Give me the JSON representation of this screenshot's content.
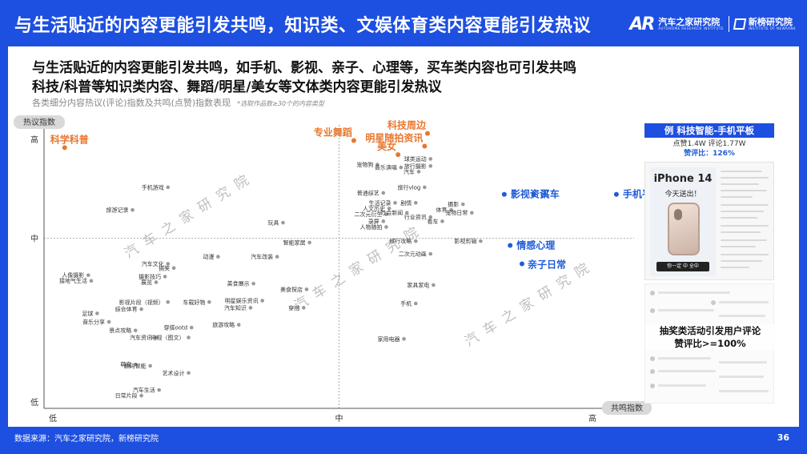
{
  "header": {
    "title": "与生活贴近的内容更能引发共鸣，知识类、文娱体育类内容更能引发热议",
    "logo_primary": "汽车之家研究院",
    "logo_primary_en": "AUTOHOME RESEARCH INSTITUTE",
    "logo_secondary": "新榜研究院",
    "logo_secondary_en": "INSTITUTE OF NEWRANK"
  },
  "headline": {
    "line1": "与生活贴近的内容更能引发共鸣，如手机、影视、亲子、心理等，买车类内容也可引发共鸣",
    "line2": "科技/科普等知识类内容、舞蹈/明星/美女等文体类内容更能引发热议",
    "subtitle": "各类细分内容热议(评论)指数及共鸣(点赞)指数表现",
    "note": "*选取作品数≥30个的内容类型"
  },
  "chart_data": {
    "type": "scatter",
    "xlabel": "共鸣指数",
    "ylabel": "热议指数",
    "x_ticks": [
      "低",
      "中",
      "高"
    ],
    "y_ticks": [
      "高",
      "中",
      "低"
    ],
    "xlim": [
      0,
      10
    ],
    "ylim": [
      0,
      10
    ],
    "divider_x": 5,
    "divider_y": 6,
    "points": [
      {
        "label": "科学科普",
        "x": 0.35,
        "y": 9.2,
        "style": "orange"
      },
      {
        "label": "专业舞蹈",
        "x": 5.25,
        "y": 9.45,
        "style": "orange"
      },
      {
        "label": "科技周边",
        "x": 6.5,
        "y": 9.7,
        "style": "orange"
      },
      {
        "label": "明星随拍资讯",
        "x": 6.45,
        "y": 9.25,
        "style": "orange"
      },
      {
        "label": "美女",
        "x": 6.0,
        "y": 8.95,
        "style": "orange"
      },
      {
        "label": "影视资讯",
        "x": 7.8,
        "y": 7.55,
        "style": "blue"
      },
      {
        "label": "买车",
        "x": 8.3,
        "y": 7.55,
        "style": "blue"
      },
      {
        "label": "手机平板",
        "x": 9.7,
        "y": 7.55,
        "style": "blue"
      },
      {
        "label": "情感心理",
        "x": 7.9,
        "y": 5.75,
        "style": "blue"
      },
      {
        "label": "亲子日常",
        "x": 8.1,
        "y": 5.1,
        "style": "blue"
      },
      {
        "label": "球类运动",
        "x": 6.55,
        "y": 8.8,
        "style": "normal"
      },
      {
        "label": "旅行摄影",
        "x": 6.55,
        "y": 8.55,
        "style": "normal"
      },
      {
        "label": "宠物狗",
        "x": 5.65,
        "y": 8.6,
        "style": "normal"
      },
      {
        "label": "音乐演唱",
        "x": 6.05,
        "y": 8.5,
        "style": "normal"
      },
      {
        "label": "汽车",
        "x": 6.35,
        "y": 8.35,
        "style": "normal"
      },
      {
        "label": "旅行vlog",
        "x": 6.45,
        "y": 7.8,
        "style": "normal"
      },
      {
        "label": "普通综艺",
        "x": 5.75,
        "y": 7.6,
        "style": "normal"
      },
      {
        "label": "生活记录",
        "x": 5.95,
        "y": 7.25,
        "style": "normal"
      },
      {
        "label": "剧情",
        "x": 6.3,
        "y": 7.25,
        "style": "normal"
      },
      {
        "label": "摄影",
        "x": 7.1,
        "y": 7.2,
        "style": "normal"
      },
      {
        "label": "人文历史",
        "x": 5.85,
        "y": 7.05,
        "style": "normal"
      },
      {
        "label": "二次元衍生",
        "x": 5.8,
        "y": 6.85,
        "style": "normal"
      },
      {
        "label": "社会新闻",
        "x": 6.15,
        "y": 6.9,
        "style": "normal"
      },
      {
        "label": "体育",
        "x": 6.9,
        "y": 7.0,
        "style": "normal"
      },
      {
        "label": "宠物日常",
        "x": 7.25,
        "y": 6.9,
        "style": "normal"
      },
      {
        "label": "行业资讯",
        "x": 6.55,
        "y": 6.75,
        "style": "normal"
      },
      {
        "label": "录屏",
        "x": 5.75,
        "y": 6.6,
        "style": "normal"
      },
      {
        "label": "看车",
        "x": 6.75,
        "y": 6.6,
        "style": "normal"
      },
      {
        "label": "人物随拍",
        "x": 5.8,
        "y": 6.4,
        "style": "normal"
      },
      {
        "label": "旅行攻略",
        "x": 6.3,
        "y": 5.9,
        "style": "normal"
      },
      {
        "label": "影视剪辑",
        "x": 7.4,
        "y": 5.9,
        "style": "normal"
      },
      {
        "label": "二次元动画",
        "x": 6.55,
        "y": 5.45,
        "style": "normal"
      },
      {
        "label": "智能家居",
        "x": 4.5,
        "y": 5.85,
        "style": "normal"
      },
      {
        "label": "玩具",
        "x": 4.05,
        "y": 6.55,
        "style": "normal"
      },
      {
        "label": "手机游戏",
        "x": 2.1,
        "y": 7.8,
        "style": "normal"
      },
      {
        "label": "旅游记录",
        "x": 1.5,
        "y": 7.0,
        "style": "normal"
      },
      {
        "label": "动漫",
        "x": 2.95,
        "y": 5.35,
        "style": "normal"
      },
      {
        "label": "汽车改装",
        "x": 3.95,
        "y": 5.35,
        "style": "normal"
      },
      {
        "label": "汽车文化",
        "x": 2.1,
        "y": 5.1,
        "style": "normal"
      },
      {
        "label": "搞笑",
        "x": 2.2,
        "y": 4.95,
        "style": "normal"
      },
      {
        "label": "人像摄影",
        "x": 0.75,
        "y": 4.7,
        "style": "normal"
      },
      {
        "label": "摄影技巧",
        "x": 2.05,
        "y": 4.65,
        "style": "normal"
      },
      {
        "label": "接地气生活",
        "x": 0.8,
        "y": 4.5,
        "style": "normal"
      },
      {
        "label": "展览",
        "x": 1.9,
        "y": 4.45,
        "style": "normal"
      },
      {
        "label": "美食展示",
        "x": 3.55,
        "y": 4.4,
        "style": "normal"
      },
      {
        "label": "美食探店",
        "x": 4.45,
        "y": 4.2,
        "style": "normal"
      },
      {
        "label": "影视片段（视频）",
        "x": 2.1,
        "y": 3.75,
        "style": "normal"
      },
      {
        "label": "车载好物",
        "x": 2.8,
        "y": 3.75,
        "style": "normal"
      },
      {
        "label": "明星娱乐资讯",
        "x": 3.7,
        "y": 3.8,
        "style": "normal"
      },
      {
        "label": "汽车知识",
        "x": 3.5,
        "y": 3.55,
        "style": "normal"
      },
      {
        "label": "综合体育",
        "x": 1.65,
        "y": 3.5,
        "style": "normal"
      },
      {
        "label": "足球",
        "x": 0.9,
        "y": 3.35,
        "style": "normal"
      },
      {
        "label": "穿搭",
        "x": 4.4,
        "y": 3.55,
        "style": "normal"
      },
      {
        "label": "音乐分享",
        "x": 1.1,
        "y": 3.05,
        "style": "normal"
      },
      {
        "label": "旅游攻略",
        "x": 3.3,
        "y": 2.95,
        "style": "normal"
      },
      {
        "label": "穿搭ootd",
        "x": 2.5,
        "y": 2.85,
        "style": "normal"
      },
      {
        "label": "景点攻略",
        "x": 1.55,
        "y": 2.75,
        "style": "normal"
      },
      {
        "label": "汽车资讯",
        "x": 1.9,
        "y": 2.5,
        "style": "normal"
      },
      {
        "label": "电视（图文）",
        "x": 2.45,
        "y": 2.5,
        "style": "normal"
      },
      {
        "label": "萌宠",
        "x": 1.55,
        "y": 1.55,
        "style": "normal"
      },
      {
        "label": "数码智能",
        "x": 1.8,
        "y": 1.5,
        "style": "normal"
      },
      {
        "label": "艺术设计",
        "x": 2.45,
        "y": 1.25,
        "style": "normal"
      },
      {
        "label": "汽车生活",
        "x": 1.95,
        "y": 0.65,
        "style": "normal"
      },
      {
        "label": "日常片段",
        "x": 1.65,
        "y": 0.45,
        "style": "normal"
      },
      {
        "label": "家具家电",
        "x": 6.6,
        "y": 4.35,
        "style": "normal"
      },
      {
        "label": "手机",
        "x": 6.3,
        "y": 3.7,
        "style": "normal"
      },
      {
        "label": "家用电器",
        "x": 6.1,
        "y": 2.45,
        "style": "normal"
      }
    ]
  },
  "watermark": "汽车之家研究院",
  "card": {
    "title": "例 科技智能-手机平板",
    "stats": "点赞1.4W  评论1.77W",
    "ratio": "赞评比：126%",
    "promo_title": "iPhone 14",
    "promo_sub": "今天送出！",
    "promo_bar": "你一定  中 全中",
    "comment_note": "抽奖类活动引发用户评论\n赞评比>=100%"
  },
  "footer": {
    "source": "数据来源：汽车之家研究院，新榜研究院",
    "page": "36"
  },
  "colors": {
    "accent": "#1d4fe0",
    "orange": "#e8772e",
    "blue_label": "#1f5cd6"
  }
}
